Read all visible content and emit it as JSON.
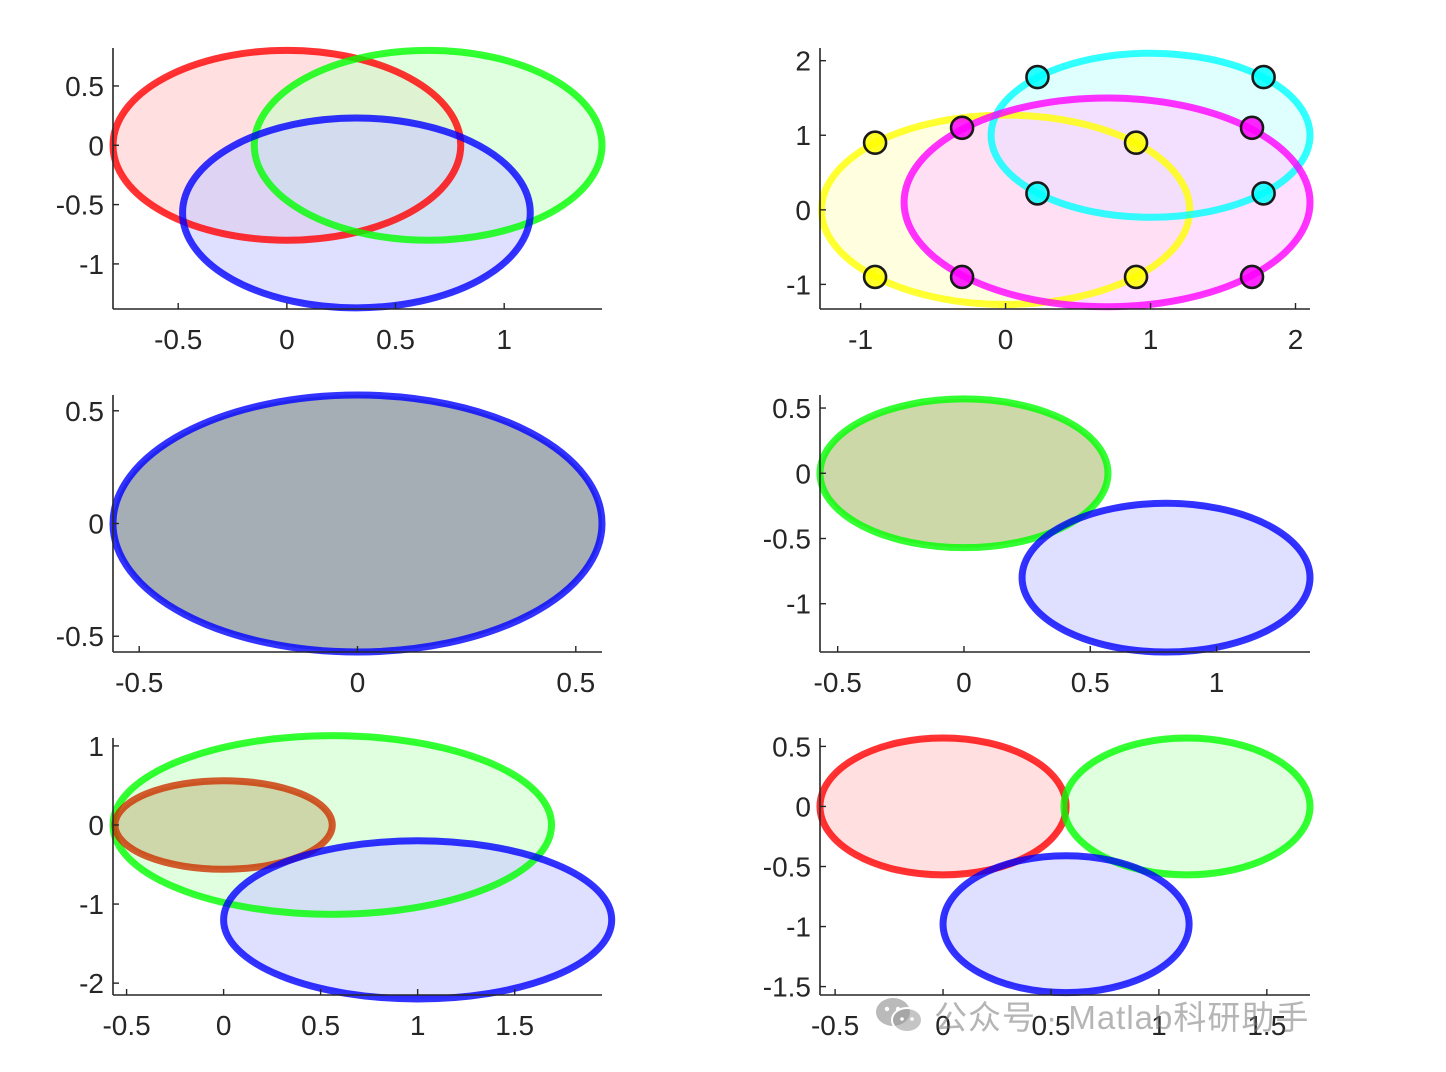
{
  "watermark": {
    "text": "公众号 · Matlab科研助手",
    "icon": "wechat-logo-icon"
  },
  "chart_data": [
    {
      "type": "ellipse",
      "xlim": [
        -0.8,
        1.45
      ],
      "ylim": [
        -1.38,
        0.82
      ],
      "xticks": [
        -0.5,
        0,
        0.5,
        1
      ],
      "xticklabels": [
        "-0.5",
        "0",
        "0.5",
        "1"
      ],
      "yticks": [
        0.5,
        0,
        -0.5,
        -1
      ],
      "yticklabels": [
        "0.5",
        "0",
        "-0.5",
        "-1"
      ],
      "ellipses": [
        {
          "cx": 0,
          "cy": 0,
          "rx": 0.8,
          "ry": 0.8,
          "color": "#ff0000",
          "fill": "#ffcccc"
        },
        {
          "cx": 0.65,
          "cy": 0,
          "rx": 0.8,
          "ry": 0.8,
          "color": "#00ff00",
          "fill": "#ccffcc"
        },
        {
          "cx": 0.32,
          "cy": -0.57,
          "rx": 0.8,
          "ry": 0.8,
          "color": "#0000ff",
          "fill": "#ccccff"
        }
      ],
      "points": []
    },
    {
      "type": "ellipse",
      "xlim": [
        -1.28,
        2.1
      ],
      "ylim": [
        -1.33,
        2.17
      ],
      "xticks": [
        -1,
        0,
        1,
        2
      ],
      "xticklabels": [
        "-1",
        "0",
        "1",
        "2"
      ],
      "yticks": [
        2,
        1,
        0,
        -1
      ],
      "yticklabels": [
        "2",
        "1",
        "0",
        "-1"
      ],
      "ellipses": [
        {
          "cx": 0,
          "cy": 0,
          "rx": 1.27,
          "ry": 1.27,
          "color": "#ffff00",
          "fill": "#ffffcc"
        },
        {
          "cx": 1,
          "cy": 1,
          "rx": 1.1,
          "ry": 1.1,
          "color": "#00ffff",
          "fill": "#ccffff"
        },
        {
          "cx": 0.7,
          "cy": 0.1,
          "rx": 1.4,
          "ry": 1.4,
          "color": "#ff00ff",
          "fill": "#ffccff"
        }
      ],
      "points": [
        {
          "x": -0.9,
          "y": 0.9,
          "color": "#ffff00"
        },
        {
          "x": 0.9,
          "y": 0.9,
          "color": "#ffff00"
        },
        {
          "x": -0.9,
          "y": -0.9,
          "color": "#ffff00"
        },
        {
          "x": 0.9,
          "y": -0.9,
          "color": "#ffff00"
        },
        {
          "x": 0.22,
          "y": 1.78,
          "color": "#00ffff"
        },
        {
          "x": 1.78,
          "y": 1.78,
          "color": "#00ffff"
        },
        {
          "x": 0.22,
          "y": 0.22,
          "color": "#00ffff"
        },
        {
          "x": 1.78,
          "y": 0.22,
          "color": "#00ffff"
        },
        {
          "x": -0.3,
          "y": 1.1,
          "color": "#ff00ff"
        },
        {
          "x": 1.7,
          "y": 1.1,
          "color": "#ff00ff"
        },
        {
          "x": -0.3,
          "y": -0.9,
          "color": "#ff00ff"
        },
        {
          "x": 1.7,
          "y": -0.9,
          "color": "#ff00ff"
        }
      ]
    },
    {
      "type": "ellipse",
      "xlim": [
        -0.56,
        0.56
      ],
      "ylim": [
        -0.57,
        0.57
      ],
      "xticks": [
        -0.5,
        0,
        0.5
      ],
      "xticklabels": [
        "-0.5",
        "0",
        "0.5"
      ],
      "yticks": [
        0.5,
        0,
        -0.5
      ],
      "yticklabels": [
        "0.5",
        "0",
        "-0.5"
      ],
      "ellipses": [
        {
          "cx": 0,
          "cy": 0,
          "rx": 0.56,
          "ry": 0.57,
          "color": "#0000ff",
          "fill": "#a3abb4",
          "opaque": true
        }
      ],
      "points": []
    },
    {
      "type": "ellipse",
      "xlim": [
        -0.57,
        1.37
      ],
      "ylim": [
        -1.37,
        0.6
      ],
      "xticks": [
        -0.5,
        0,
        0.5,
        1
      ],
      "xticklabels": [
        "-0.5",
        "0",
        "0.5",
        "1"
      ],
      "yticks": [
        0.5,
        0,
        -0.5,
        -1
      ],
      "yticklabels": [
        "0.5",
        "0",
        "-0.5",
        "-1"
      ],
      "ellipses": [
        {
          "cx": 0,
          "cy": 0,
          "rx": 0.57,
          "ry": 0.57,
          "color": "#00ff00",
          "fill": "#ccd7a7",
          "opaque": true
        },
        {
          "cx": 0.8,
          "cy": -0.8,
          "rx": 0.57,
          "ry": 0.57,
          "color": "#0000ff",
          "fill": "#ccccff"
        }
      ],
      "points": []
    },
    {
      "type": "ellipse",
      "xlim": [
        -0.57,
        1.95
      ],
      "ylim": [
        -2.15,
        1.1
      ],
      "xticks": [
        -0.5,
        0,
        0.5,
        1,
        1.5
      ],
      "xticklabels": [
        "-0.5",
        "0",
        "0.5",
        "1",
        "1.5"
      ],
      "yticks": [
        1,
        0,
        -1,
        -2
      ],
      "yticklabels": [
        "1",
        "0",
        "-1",
        "-2"
      ],
      "ellipses": [
        {
          "cx": 0.56,
          "cy": 0,
          "rx": 1.13,
          "ry": 1.13,
          "color": "#00ff00",
          "fill": "#ccffcc"
        },
        {
          "cx": 0,
          "cy": 0,
          "rx": 0.56,
          "ry": 0.56,
          "color": "#cc3300",
          "fill": "#cdd6a8",
          "opaque": true
        },
        {
          "cx": 1,
          "cy": -1.2,
          "rx": 1,
          "ry": 1,
          "color": "#0000ff",
          "fill": "#ccccff"
        }
      ],
      "points": []
    },
    {
      "type": "ellipse",
      "xlim": [
        -0.57,
        1.7
      ],
      "ylim": [
        -1.57,
        0.57
      ],
      "xticks": [
        -0.5,
        0,
        0.5,
        1,
        1.5
      ],
      "xticklabels": [
        "-0.5",
        "0",
        "0.5",
        "1",
        "1.5"
      ],
      "yticks": [
        0.5,
        0,
        -0.5,
        -1,
        -1.5
      ],
      "yticklabels": [
        "0.5",
        "0",
        "-0.5",
        "-1",
        "-1.5"
      ],
      "ellipses": [
        {
          "cx": 0,
          "cy": 0,
          "rx": 0.57,
          "ry": 0.57,
          "color": "#ff0000",
          "fill": "#ffcccc"
        },
        {
          "cx": 1.13,
          "cy": 0,
          "rx": 0.57,
          "ry": 0.57,
          "color": "#00ff00",
          "fill": "#ccffcc"
        },
        {
          "cx": 0.57,
          "cy": -0.98,
          "rx": 0.57,
          "ry": 0.57,
          "color": "#0000ff",
          "fill": "#ccccff"
        }
      ],
      "points": []
    }
  ]
}
